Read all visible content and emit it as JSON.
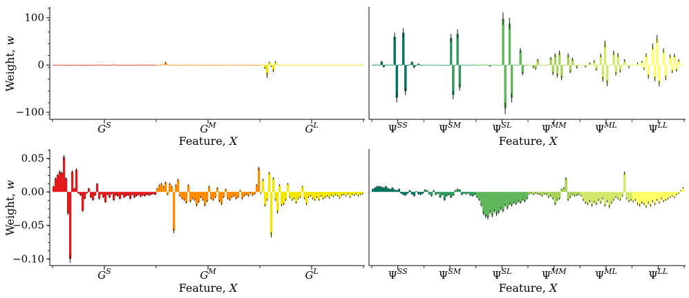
{
  "chart_data": [
    {
      "id": "top-left",
      "type": "bar",
      "ylabel": "Weight, w",
      "xlabel": "Feature, X",
      "ylim": [
        -115,
        120
      ],
      "yticks": [
        100,
        0,
        -100
      ],
      "ytick_labels": [
        "100",
        "0",
        "−100"
      ],
      "groups": [
        {
          "base": "G",
          "sup": "S",
          "color": "#e31a1c"
        },
        {
          "base": "G",
          "sup": "M",
          "color": "#ff8c00"
        },
        {
          "base": "G",
          "sup": "L",
          "color": "#f2e600"
        }
      ],
      "bars_per_group": 50,
      "pattern": "dense-top",
      "error_bars": true
    },
    {
      "id": "top-right",
      "type": "bar",
      "ylabel": "",
      "xlabel": "Feature, X",
      "ylim": [
        -115,
        120
      ],
      "yticks": [],
      "ytick_labels": [],
      "groups": [
        {
          "base": "Ψ",
          "sup": "SS",
          "color": "#00755e"
        },
        {
          "base": "Ψ",
          "sup": "SM",
          "color": "#2e9a5e"
        },
        {
          "base": "Ψ",
          "sup": "SL",
          "color": "#5fb75a"
        },
        {
          "base": "Ψ",
          "sup": "MM",
          "color": "#a6d25a"
        },
        {
          "base": "Ψ",
          "sup": "ML",
          "color": "#d2e86a"
        },
        {
          "base": "Ψ",
          "sup": "LL",
          "color": "#ffff66"
        }
      ],
      "bars_per_group": 24,
      "pattern": "sparse-top",
      "error_bars": true
    },
    {
      "id": "bottom-left",
      "type": "bar",
      "ylabel": "Weight, w",
      "xlabel": "Feature, X",
      "ylim": [
        -0.11,
        0.062
      ],
      "yticks": [
        0.05,
        0.0,
        -0.05,
        -0.1
      ],
      "ytick_labels": [
        "0.05",
        "0.00",
        "−0.05",
        "−0.10"
      ],
      "groups": [
        {
          "base": "G",
          "sup": "S",
          "color": "#e31a1c"
        },
        {
          "base": "G",
          "sup": "M",
          "color": "#ff8c00"
        },
        {
          "base": "G",
          "sup": "L",
          "color": "#f2e600"
        }
      ],
      "bars_per_group": 50,
      "pattern": "dense-bottom",
      "error_bars": true
    },
    {
      "id": "bottom-right",
      "type": "bar",
      "ylabel": "",
      "xlabel": "Feature, X",
      "ylim": [
        -0.11,
        0.062
      ],
      "yticks": [],
      "ytick_labels": [],
      "groups": [
        {
          "base": "Ψ",
          "sup": "SS",
          "color": "#00755e"
        },
        {
          "base": "Ψ",
          "sup": "SM",
          "color": "#2e9a5e"
        },
        {
          "base": "Ψ",
          "sup": "SL",
          "color": "#5fb75a"
        },
        {
          "base": "Ψ",
          "sup": "MM",
          "color": "#a6d25a"
        },
        {
          "base": "Ψ",
          "sup": "ML",
          "color": "#d2e86a"
        },
        {
          "base": "Ψ",
          "sup": "LL",
          "color": "#ffff66"
        }
      ],
      "bars_per_group": 24,
      "pattern": "smooth-bottom",
      "error_bars": true
    }
  ]
}
